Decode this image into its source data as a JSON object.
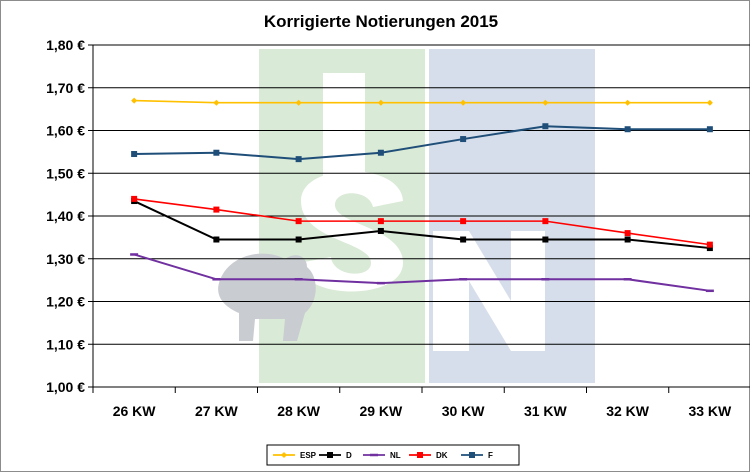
{
  "chart_data": {
    "type": "line",
    "title": "Korrigierte Notierungen 2015",
    "xlabel": "",
    "ylabel": "",
    "categories": [
      "26 KW",
      "27 KW",
      "28 KW",
      "29 KW",
      "30 KW",
      "31 KW",
      "32 KW",
      "33 KW"
    ],
    "ylim": [
      1.0,
      1.8
    ],
    "ytick_values": [
      1.0,
      1.1,
      1.2,
      1.3,
      1.4,
      1.5,
      1.6,
      1.7,
      1.8
    ],
    "ytick_labels": [
      "1,00 €",
      "1,10 €",
      "1,20 €",
      "1,30 €",
      "1,40 €",
      "1,50 €",
      "1,60 €",
      "1,70 €",
      "1,80 €"
    ],
    "grid": true,
    "legend_position": "bottom",
    "series": [
      {
        "name": "ESP",
        "color": "#FFC000",
        "marker": "diamond",
        "values": [
          1.67,
          1.665,
          1.665,
          1.665,
          1.665,
          1.665,
          1.665,
          1.665
        ]
      },
      {
        "name": "D",
        "color": "#000000",
        "marker": "square",
        "values": [
          1.435,
          1.345,
          1.345,
          1.365,
          1.345,
          1.345,
          1.345,
          1.325
        ]
      },
      {
        "name": "NL",
        "color": "#7030A0",
        "marker": "dash",
        "values": [
          1.31,
          1.252,
          1.252,
          1.243,
          1.252,
          1.252,
          1.252,
          1.225
        ]
      },
      {
        "name": "DK",
        "color": "#FF0000",
        "marker": "square",
        "values": [
          1.44,
          1.415,
          1.388,
          1.388,
          1.388,
          1.388,
          1.36,
          1.333
        ]
      },
      {
        "name": "F",
        "color": "#1F4E79",
        "marker": "square",
        "values": [
          1.545,
          1.548,
          1.533,
          1.548,
          1.58,
          1.61,
          1.603,
          1.603
        ]
      }
    ]
  }
}
